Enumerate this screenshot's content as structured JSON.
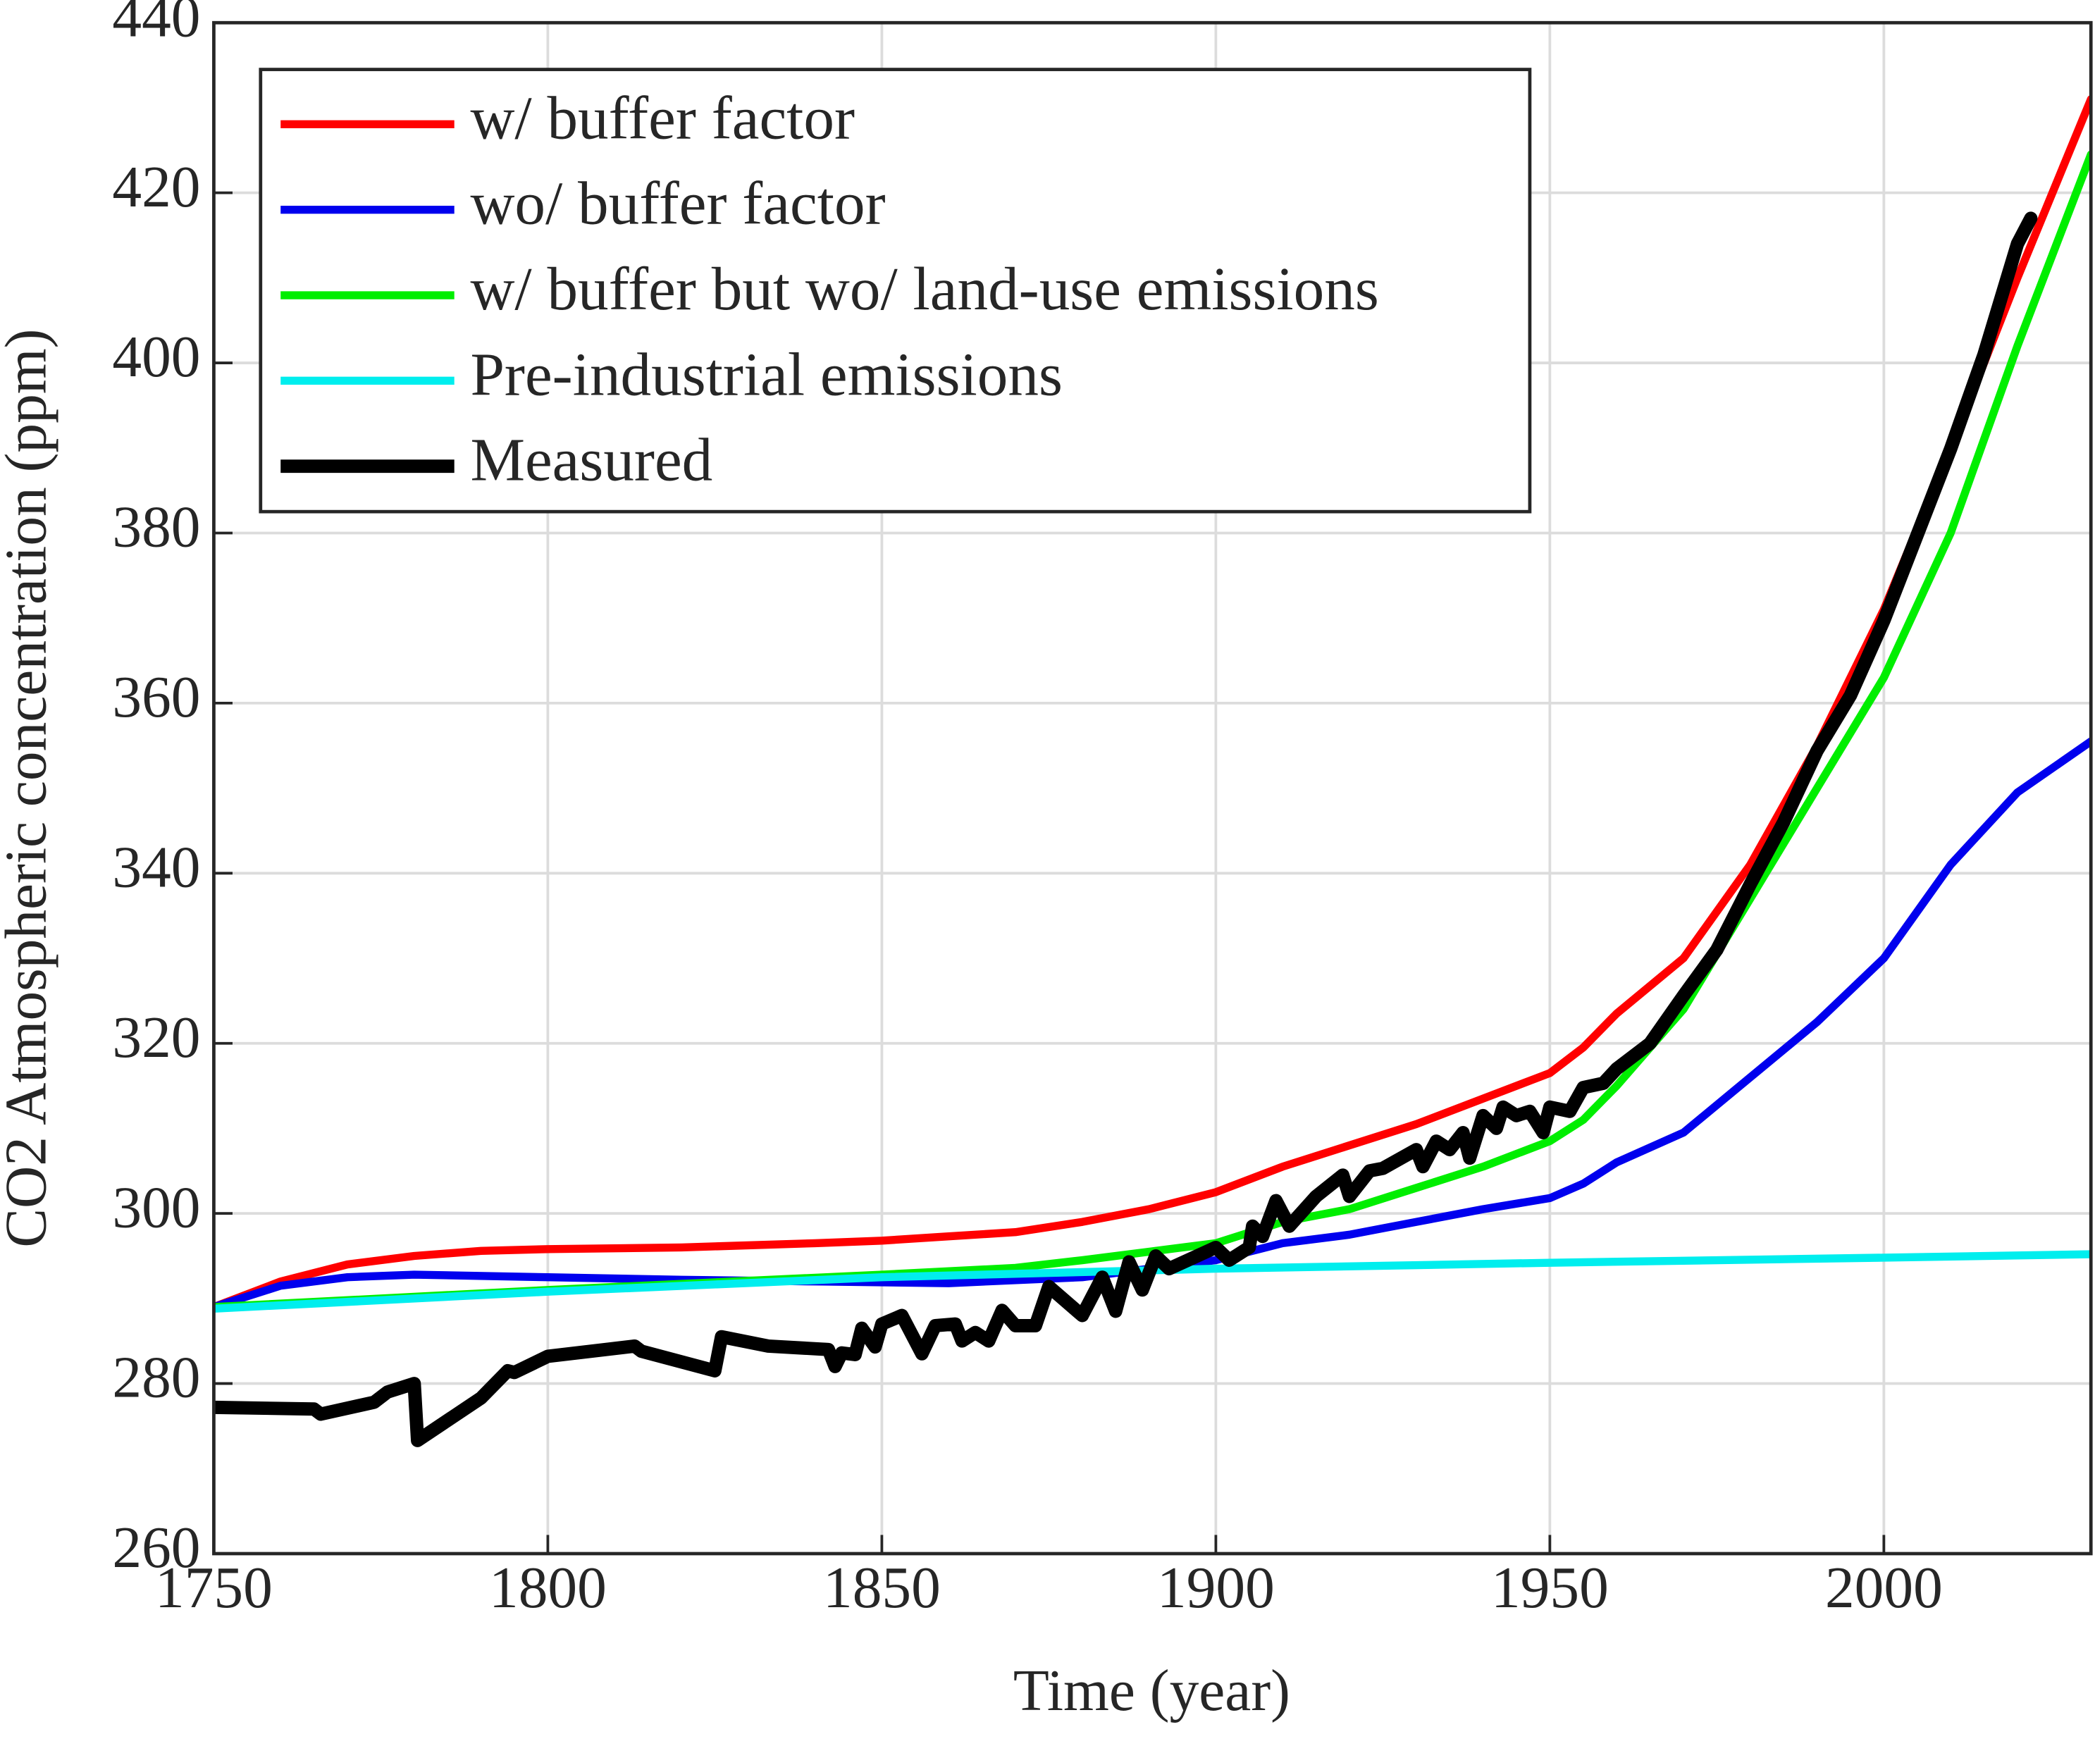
{
  "chart_data": {
    "type": "line",
    "xlabel": "Time (year)",
    "ylabel": "CO2 Atmospheric concentration (ppm)",
    "xlim": [
      1750,
      2031
    ],
    "ylim": [
      260,
      440
    ],
    "xticks": [
      1750,
      1800,
      1850,
      1900,
      1950,
      2000
    ],
    "yticks": [
      260,
      280,
      300,
      320,
      340,
      360,
      380,
      400,
      420,
      440
    ],
    "grid": true,
    "legend": "upper left",
    "series": [
      {
        "name": "w/ buffer factor",
        "color": "#ff0000",
        "x": [
          1750,
          1760,
          1770,
          1780,
          1790,
          1800,
          1820,
          1840,
          1850,
          1860,
          1870,
          1880,
          1890,
          1900,
          1910,
          1920,
          1930,
          1940,
          1950,
          1955,
          1960,
          1970,
          1980,
          1990,
          2000,
          2010,
          2020,
          2031
        ],
        "values": [
          289,
          292,
          294,
          295,
          295.6,
          295.8,
          296,
          296.5,
          296.8,
          297.3,
          297.8,
          299,
          300.5,
          302.5,
          305.5,
          308,
          310.5,
          313.5,
          316.5,
          319.5,
          323.5,
          330,
          341,
          355,
          371,
          390,
          410,
          431
        ]
      },
      {
        "name": "wo/ buffer factor",
        "color": "#0000ee",
        "x": [
          1750,
          1760,
          1770,
          1780,
          1800,
          1820,
          1840,
          1860,
          1880,
          1890,
          1900,
          1910,
          1920,
          1930,
          1940,
          1950,
          1955,
          1960,
          1970,
          1980,
          1990,
          2000,
          2010,
          2020,
          2031
        ],
        "values": [
          289,
          291.5,
          292.5,
          292.8,
          292.5,
          292.2,
          292,
          291.8,
          292.5,
          293.5,
          294.5,
          296.5,
          297.5,
          299,
          300.5,
          301.8,
          303.5,
          306,
          309.5,
          316,
          322.5,
          330,
          341,
          349.5,
          355.5
        ]
      },
      {
        "name": "w/ buffer but wo/ land-use emissions",
        "color": "#00ee00",
        "x": [
          1750,
          1800,
          1850,
          1870,
          1880,
          1890,
          1900,
          1910,
          1920,
          1930,
          1940,
          1950,
          1955,
          1960,
          1970,
          1980,
          1990,
          2000,
          2010,
          2020,
          2031
        ],
        "values": [
          289,
          291,
          292.8,
          293.6,
          294.5,
          295.5,
          296.5,
          299,
          300.5,
          303,
          305.5,
          308.5,
          311,
          315,
          324,
          337,
          350,
          363,
          380,
          402,
          424.5
        ]
      },
      {
        "name": "Pre-industrial emissions",
        "color": "#00eeee",
        "x": [
          1750,
          1800,
          1850,
          1900,
          1950,
          2000,
          2031
        ],
        "values": [
          288.8,
          290.8,
          292.5,
          293.5,
          294.2,
          294.8,
          295.2
        ]
      },
      {
        "name": "Measured",
        "color": "#000000",
        "x": [
          1750,
          1765,
          1766,
          1774,
          1776,
          1780,
          1780.5,
          1790,
          1794,
          1795,
          1800,
          1813,
          1814,
          1825,
          1826,
          1833,
          1842,
          1843,
          1844,
          1846,
          1847,
          1849,
          1850,
          1853,
          1856,
          1858,
          1861,
          1862,
          1864,
          1866,
          1868,
          1870,
          1873,
          1875,
          1880,
          1883,
          1885,
          1887,
          1889,
          1891,
          1893,
          1900,
          1902,
          1905,
          1905.5,
          1907,
          1909,
          1911,
          1915,
          1919,
          1920,
          1923,
          1925,
          1930,
          1931,
          1933,
          1935,
          1937,
          1938,
          1940,
          1942,
          1943,
          1945,
          1947,
          1949,
          1950,
          1953,
          1955,
          1958,
          1960,
          1965,
          1970,
          1975,
          1980,
          1985,
          1990,
          1995,
          2000,
          2005,
          2010,
          2015,
          2020,
          2022
        ],
        "values": [
          277.2,
          277,
          276.4,
          277.8,
          279,
          280,
          273.3,
          278.3,
          281.5,
          281.3,
          283.2,
          284.4,
          283.8,
          281.5,
          285.5,
          284.4,
          284,
          282,
          283.6,
          283.4,
          286.5,
          284.3,
          287,
          288,
          283.5,
          286.8,
          287,
          285,
          286,
          285,
          288.6,
          286.8,
          286.8,
          291.4,
          288,
          292.5,
          288.5,
          294.3,
          291,
          295,
          293.5,
          296,
          294.5,
          296,
          298.5,
          297.3,
          301.5,
          298.5,
          302,
          304.5,
          302,
          305,
          305.3,
          307.5,
          305.5,
          308.5,
          307.5,
          309.5,
          306.5,
          311.5,
          310,
          312.5,
          311.5,
          312,
          309.5,
          312.5,
          312,
          314.8,
          315.3,
          317,
          320,
          325.6,
          331,
          338.7,
          346,
          354.4,
          360.9,
          369.7,
          379.8,
          389.9,
          401,
          414,
          417
        ]
      }
    ]
  }
}
